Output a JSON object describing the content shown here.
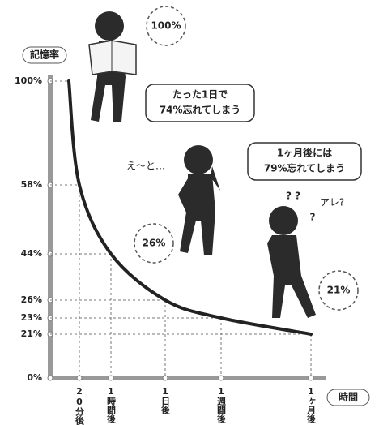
{
  "chart_data": {
    "type": "line",
    "y_label": "記憶率",
    "x_label": "時間",
    "categories": [
      null,
      "20分後",
      "1時間後",
      "1日後",
      "1週間後",
      "1ヶ月後"
    ],
    "values": [
      100,
      58,
      44,
      26,
      23,
      21
    ],
    "color": "#222222",
    "ylim": [
      0,
      100
    ],
    "yticks": [
      {
        "value": 0,
        "label": "0%"
      },
      {
        "value": 21,
        "label": "21%"
      },
      {
        "value": 23,
        "label": "23%"
      },
      {
        "value": 26,
        "label": "26%"
      },
      {
        "value": 44,
        "label": "44%"
      },
      {
        "value": 58,
        "label": "58%"
      },
      {
        "value": 100,
        "label": "100%"
      }
    ],
    "grid": true,
    "annotations": [
      "100%",
      "26%",
      "21%",
      "え～と…",
      "アレ?",
      "? ?",
      "?"
    ],
    "callouts": [
      [
        "たった1日で",
        "74%忘れてしまう"
      ],
      [
        "1ヶ月後には",
        "79%忘れてしまう"
      ]
    ]
  }
}
